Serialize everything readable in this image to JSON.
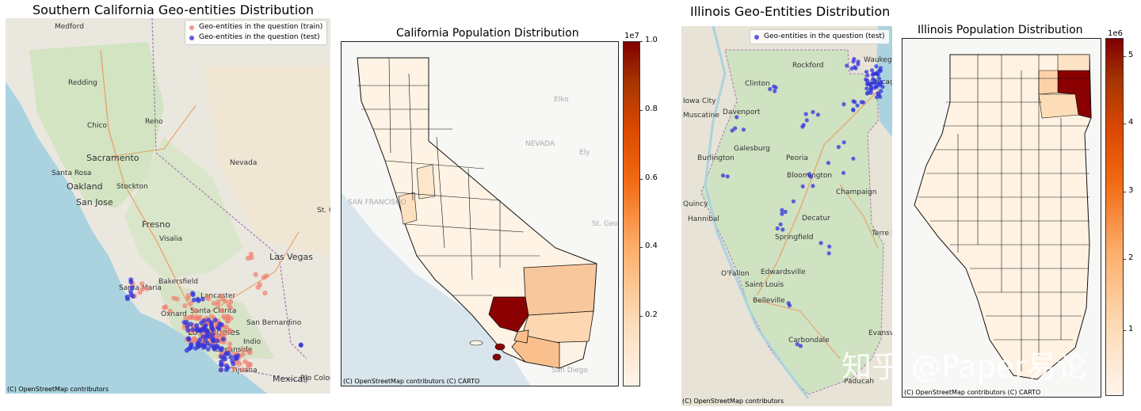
{
  "panels": {
    "socal": {
      "title": "Southern California Geo-entities Distribution",
      "legend": {
        "train_label": "Geo-entities in the question (train)",
        "test_label": "Geo-entities in the question (test)",
        "train_color": "#f08070",
        "test_color": "#3333dd"
      },
      "credit": "(C) OpenStreetMap contributors",
      "places": [
        "Medford",
        "Redding",
        "Reno",
        "Chico",
        "Sacramento",
        "Nevada",
        "Santa Rosa",
        "Oakland",
        "Stockton",
        "San Jose",
        "Fresno",
        "Visalia",
        "Las Vegas",
        "Bakersfield",
        "Santa Maria",
        "Lancaster",
        "Oxnard",
        "Santa Clarita",
        "San Bernardino",
        "Los Angeles",
        "Indio",
        "Oceanside",
        "Tijuana",
        "Mexicali",
        "Rio Colorado",
        "St. G"
      ]
    },
    "ca_pop": {
      "title": "California Population Distribution",
      "credit": "(C) OpenStreetMap contributors (C) CARTO",
      "places": [
        "NEVADA",
        "SAN FRANCISCO",
        "Elko",
        "Ely",
        "St. George",
        "San Diego"
      ],
      "colorbar": {
        "multiplier": "1e7",
        "ticks": [
          "1.0",
          "0.8",
          "0.6",
          "0.4",
          "0.2"
        ]
      }
    },
    "il": {
      "title": "Illinois Geo-Entities Distribution",
      "legend": {
        "test_label": "Geo-entities in the question (test)",
        "test_color": "#3333dd"
      },
      "credit": "(C) OpenStreetMap contributors",
      "places": [
        "Rockford",
        "Waukegan",
        "Clinton",
        "Davenport",
        "Iowa City",
        "Muscatine",
        "Galesburg",
        "Burlington",
        "Peoria",
        "Bloomington",
        "Champaign",
        "Quincy",
        "Hannibal",
        "Decatur",
        "Springfield",
        "Terre Haute",
        "O'Fallon",
        "Edwardsville",
        "Saint Louis",
        "Belleville",
        "Evansville",
        "Carbondale",
        "Paducah",
        "Chicago"
      ]
    },
    "il_pop": {
      "title": "Illinois Population Distribution",
      "credit": "(C) OpenStreetMap contributors (C) CARTO",
      "colorbar": {
        "multiplier": "1e6",
        "ticks": [
          "5",
          "4",
          "3",
          "2",
          "1"
        ]
      }
    }
  },
  "watermark": "知乎 @Paper易论"
}
